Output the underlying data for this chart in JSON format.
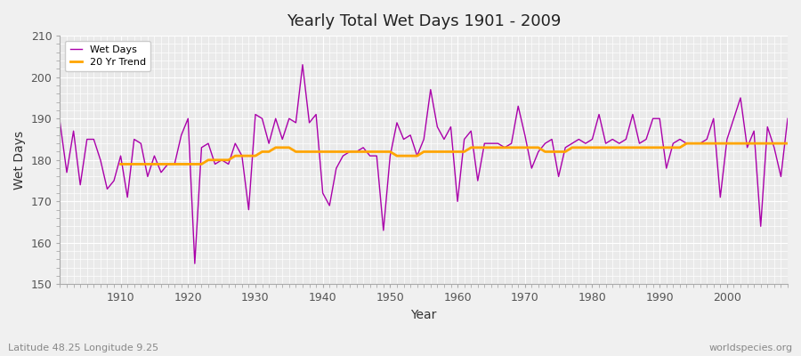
{
  "title": "Yearly Total Wet Days 1901 - 2009",
  "xlabel": "Year",
  "ylabel": "Wet Days",
  "bottom_left_label": "Latitude 48.25 Longitude 9.25",
  "bottom_right_label": "worldspecies.org",
  "ylim": [
    150,
    210
  ],
  "xlim": [
    1901,
    2009
  ],
  "yticks": [
    150,
    160,
    170,
    180,
    190,
    200,
    210
  ],
  "xticks": [
    1910,
    1920,
    1930,
    1940,
    1950,
    1960,
    1970,
    1980,
    1990,
    2000
  ],
  "wet_days_color": "#AA00AA",
  "trend_color": "#FFA500",
  "background_color": "#F0F0F0",
  "plot_bg_color": "#EAEAEA",
  "grid_color": "#FFFFFF",
  "legend_labels": [
    "Wet Days",
    "20 Yr Trend"
  ],
  "years": [
    1901,
    1902,
    1903,
    1904,
    1905,
    1906,
    1907,
    1908,
    1909,
    1910,
    1911,
    1912,
    1913,
    1914,
    1915,
    1916,
    1917,
    1918,
    1919,
    1920,
    1921,
    1922,
    1923,
    1924,
    1925,
    1926,
    1927,
    1928,
    1929,
    1930,
    1931,
    1932,
    1933,
    1934,
    1935,
    1936,
    1937,
    1938,
    1939,
    1940,
    1941,
    1942,
    1943,
    1944,
    1945,
    1946,
    1947,
    1948,
    1949,
    1950,
    1951,
    1952,
    1953,
    1954,
    1955,
    1956,
    1957,
    1958,
    1959,
    1960,
    1961,
    1962,
    1963,
    1964,
    1965,
    1966,
    1967,
    1968,
    1969,
    1970,
    1971,
    1972,
    1973,
    1974,
    1975,
    1976,
    1977,
    1978,
    1979,
    1980,
    1981,
    1982,
    1983,
    1984,
    1985,
    1986,
    1987,
    1988,
    1989,
    1990,
    1991,
    1992,
    1993,
    1994,
    1995,
    1996,
    1997,
    1998,
    1999,
    2000,
    2001,
    2002,
    2003,
    2004,
    2005,
    2006,
    2007,
    2008,
    2009
  ],
  "wet_days": [
    189,
    177,
    187,
    174,
    185,
    185,
    180,
    173,
    175,
    181,
    171,
    185,
    184,
    176,
    181,
    177,
    179,
    179,
    186,
    190,
    155,
    183,
    184,
    179,
    180,
    179,
    184,
    181,
    168,
    191,
    190,
    184,
    190,
    185,
    190,
    189,
    203,
    189,
    191,
    172,
    169,
    178,
    181,
    182,
    182,
    183,
    181,
    181,
    163,
    181,
    189,
    185,
    186,
    181,
    185,
    197,
    188,
    185,
    188,
    170,
    185,
    187,
    175,
    184,
    184,
    184,
    183,
    184,
    193,
    186,
    178,
    182,
    184,
    185,
    176,
    183,
    184,
    185,
    184,
    185,
    191,
    184,
    185,
    184,
    185,
    191,
    184,
    185,
    190,
    190,
    178,
    184,
    185,
    184,
    184,
    184,
    185,
    190,
    171,
    185,
    190,
    195,
    183,
    187,
    164,
    188,
    183,
    176,
    190
  ],
  "trend_years": [
    1910,
    1911,
    1912,
    1913,
    1914,
    1915,
    1916,
    1917,
    1918,
    1919,
    1920,
    1921,
    1922,
    1923,
    1924,
    1925,
    1926,
    1927,
    1928,
    1929,
    1930,
    1931,
    1932,
    1933,
    1934,
    1935,
    1936,
    1937,
    1938,
    1939,
    1940,
    1941,
    1942,
    1943,
    1944,
    1945,
    1946,
    1947,
    1948,
    1949,
    1950,
    1951,
    1952,
    1953,
    1954,
    1955,
    1956,
    1957,
    1958,
    1959,
    1960,
    1961,
    1962,
    1963,
    1964,
    1965,
    1966,
    1967,
    1968,
    1969,
    1970,
    1971,
    1972,
    1973,
    1974,
    1975,
    1976,
    1977,
    1978,
    1979,
    1980,
    1981,
    1982,
    1983,
    1984,
    1985,
    1986,
    1987,
    1988,
    1989,
    1990,
    1991,
    1992,
    1993,
    1994,
    1995,
    1996,
    1997,
    1998,
    1999,
    2000,
    2001,
    2002,
    2003,
    2004,
    2005,
    2006,
    2007,
    2008,
    2009
  ],
  "trend_values": [
    179,
    179,
    179,
    179,
    179,
    179,
    179,
    179,
    179,
    179,
    179,
    179,
    179,
    180,
    180,
    180,
    180,
    181,
    181,
    181,
    181,
    182,
    182,
    183,
    183,
    183,
    182,
    182,
    182,
    182,
    182,
    182,
    182,
    182,
    182,
    182,
    182,
    182,
    182,
    182,
    182,
    181,
    181,
    181,
    181,
    182,
    182,
    182,
    182,
    182,
    182,
    182,
    183,
    183,
    183,
    183,
    183,
    183,
    183,
    183,
    183,
    183,
    183,
    182,
    182,
    182,
    182,
    183,
    183,
    183,
    183,
    183,
    183,
    183,
    183,
    183,
    183,
    183,
    183,
    183,
    183,
    183,
    183,
    183,
    184,
    184,
    184,
    184,
    184,
    184,
    184,
    184,
    184,
    184,
    184,
    184,
    184,
    184,
    184,
    184
  ]
}
